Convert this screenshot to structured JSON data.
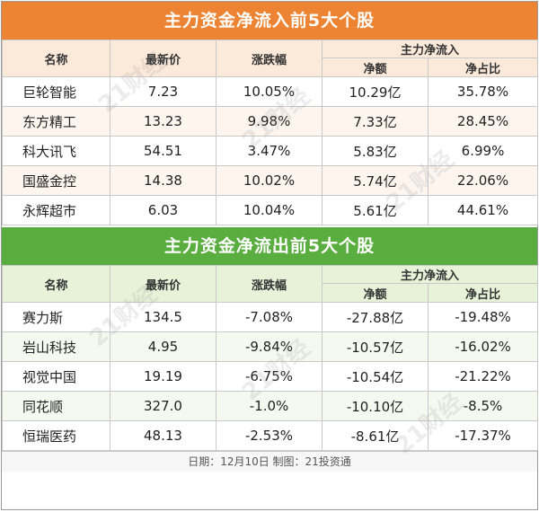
{
  "inflow": {
    "title": "主力资金净流入前5大个股",
    "headers": {
      "name": "名称",
      "price": "最新价",
      "change": "涨跌幅",
      "group": "主力净流入",
      "net": "净额",
      "ratio": "净占比"
    },
    "rows": [
      {
        "name": "巨轮智能",
        "price": "7.23",
        "change": "10.05%",
        "net": "10.29亿",
        "ratio": "35.78%"
      },
      {
        "name": "东方精工",
        "price": "13.23",
        "change": "9.98%",
        "net": "7.33亿",
        "ratio": "28.45%"
      },
      {
        "name": "科大讯飞",
        "price": "54.51",
        "change": "3.47%",
        "net": "5.83亿",
        "ratio": "6.99%"
      },
      {
        "name": "国盛金控",
        "price": "14.38",
        "change": "10.02%",
        "net": "5.74亿",
        "ratio": "22.06%"
      },
      {
        "name": "永辉超市",
        "price": "6.03",
        "change": "10.04%",
        "net": "5.61亿",
        "ratio": "44.61%"
      }
    ]
  },
  "outflow": {
    "title": "主力资金净流出前5大个股",
    "headers": {
      "name": "名称",
      "price": "最新价",
      "change": "涨跌幅",
      "group": "主力净流入",
      "net": "净额",
      "ratio": "净占比"
    },
    "rows": [
      {
        "name": "赛力斯",
        "price": "134.5",
        "change": "-7.08%",
        "net": "-27.88亿",
        "ratio": "-19.48%"
      },
      {
        "name": "岩山科技",
        "price": "4.95",
        "change": "-9.84%",
        "net": "-10.57亿",
        "ratio": "-16.02%"
      },
      {
        "name": "视觉中国",
        "price": "19.19",
        "change": "-6.75%",
        "net": "-10.54亿",
        "ratio": "-21.22%"
      },
      {
        "name": "同花顺",
        "price": "327.0",
        "change": "-1.0%",
        "net": "-10.10亿",
        "ratio": "-8.5%"
      },
      {
        "name": "恒瑞医药",
        "price": "48.13",
        "change": "-2.53%",
        "net": "-8.61亿",
        "ratio": "-17.37%"
      }
    ]
  },
  "footer": "日期：12月10日 制图：21投资通",
  "watermark": "21财经",
  "colors": {
    "inflow_header": "#ec8433",
    "outflow_header": "#5aad3f"
  }
}
